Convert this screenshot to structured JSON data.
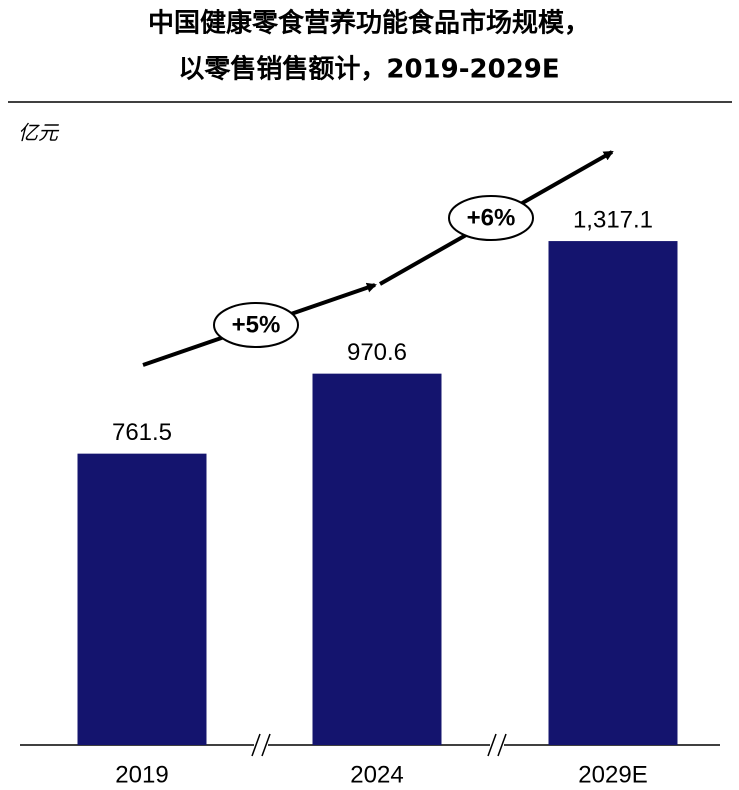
{
  "chart_data": {
    "type": "bar",
    "title": [
      "中国健康零食营养功能食品市场规模，",
      "以零售销售额计，2019-2029E"
    ],
    "unit_label": "亿元",
    "categories": [
      "2019",
      "2024",
      "2029E"
    ],
    "values": [
      761.5,
      970.6,
      1317.1
    ],
    "value_labels": [
      "761.5",
      "970.6",
      "1,317.1"
    ],
    "color": "#14146e",
    "annotations": [
      "+5%",
      "+6%"
    ]
  }
}
